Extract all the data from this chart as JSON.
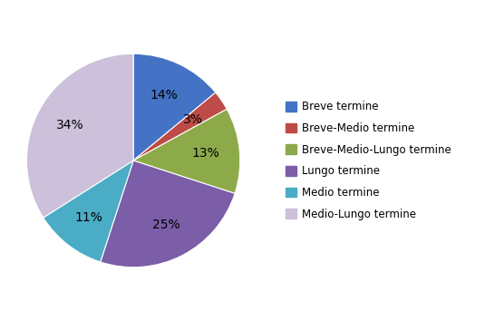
{
  "labels": [
    "Breve termine",
    "Breve-Medio termine",
    "Breve-Medio-Lungo termine",
    "Lungo termine",
    "Medio termine",
    "Medio-Lungo termine"
  ],
  "values": [
    14,
    3,
    13,
    25,
    11,
    34
  ],
  "colors": [
    "#4472C4",
    "#BE4B48",
    "#8DAA4A",
    "#7B5EA7",
    "#4BACC6",
    "#CCC0DA"
  ],
  "legend_labels": [
    "Breve termine",
    "Breve-Medio termine",
    "Breve-Medio-Lungo termine",
    "Lungo termine",
    "Medio termine",
    "Medio-Lungo termine"
  ],
  "startangle": 90,
  "pct_fontsize": 10,
  "figsize": [
    5.35,
    3.54
  ],
  "dpi": 100
}
